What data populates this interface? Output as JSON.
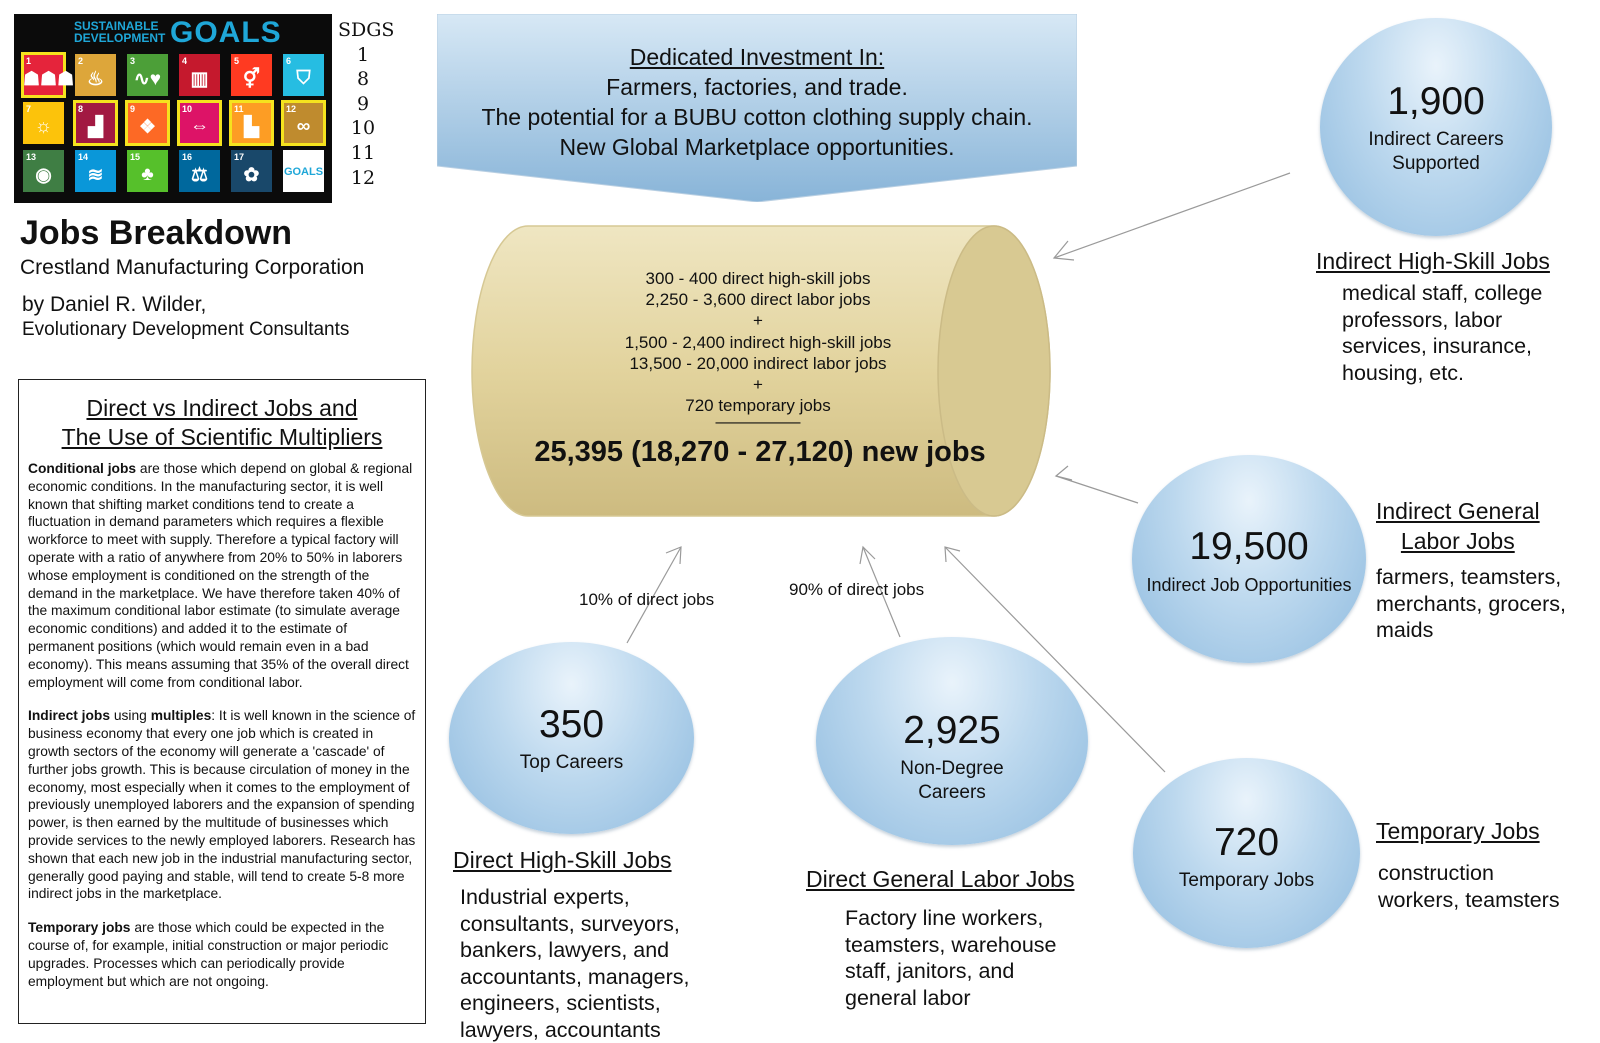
{
  "sdg_logo": {
    "title_line1": "SUSTAINABLE",
    "title_line2": "DEVELOPMENT",
    "title_goals": "GOALS",
    "tiles": [
      {
        "num": "1",
        "color": "#e5243b",
        "icon": "people-icon",
        "glyph": "☗☗☗",
        "highlight": true
      },
      {
        "num": "2",
        "color": "#dda63a",
        "icon": "bowl-icon",
        "glyph": "♨",
        "highlight": false
      },
      {
        "num": "3",
        "color": "#4c9f38",
        "icon": "heartbeat-icon",
        "glyph": "∿♥",
        "highlight": false
      },
      {
        "num": "4",
        "color": "#c5192d",
        "icon": "book-icon",
        "glyph": "▥",
        "highlight": false
      },
      {
        "num": "5",
        "color": "#ff3a21",
        "icon": "gender-icon",
        "glyph": "⚥",
        "highlight": false
      },
      {
        "num": "6",
        "color": "#26bde2",
        "icon": "water-icon",
        "glyph": "⛉",
        "highlight": false
      },
      {
        "num": "7",
        "color": "#fcc30b",
        "icon": "sun-icon",
        "glyph": "☼",
        "highlight": false
      },
      {
        "num": "8",
        "color": "#a21942",
        "icon": "growth-chart-icon",
        "glyph": "▟",
        "highlight": true
      },
      {
        "num": "9",
        "color": "#fd6925",
        "icon": "cubes-icon",
        "glyph": "❖",
        "highlight": true
      },
      {
        "num": "10",
        "color": "#dd1367",
        "icon": "equality-icon",
        "glyph": "⇔",
        "highlight": true
      },
      {
        "num": "11",
        "color": "#fd9d24",
        "icon": "city-icon",
        "glyph": "▙",
        "highlight": true
      },
      {
        "num": "12",
        "color": "#bf8b2e",
        "icon": "infinity-icon",
        "glyph": "∞",
        "highlight": true
      },
      {
        "num": "13",
        "color": "#3f7e44",
        "icon": "eye-icon",
        "glyph": "◉",
        "highlight": false
      },
      {
        "num": "14",
        "color": "#0a97d9",
        "icon": "fish-icon",
        "glyph": "≋",
        "highlight": false
      },
      {
        "num": "15",
        "color": "#56c02b",
        "icon": "tree-icon",
        "glyph": "♣",
        "highlight": false
      },
      {
        "num": "16",
        "color": "#00689d",
        "icon": "dove-icon",
        "glyph": "⚖",
        "highlight": false
      },
      {
        "num": "17",
        "color": "#19486a",
        "icon": "partnership-icon",
        "glyph": "✿",
        "highlight": false
      },
      {
        "num": "",
        "color": "#ffffff",
        "icon": "sdg-wheel-icon",
        "glyph": "GOALS",
        "highlight": false
      }
    ]
  },
  "sdg_list": {
    "heading": "SDGS",
    "numbers": [
      "1",
      "8",
      "9",
      "10",
      "11",
      "12"
    ]
  },
  "header": {
    "title": "Jobs Breakdown",
    "company": "Crestland Manufacturing Corporation",
    "author": "by Daniel R. Wilder,",
    "consultancy": "Evolutionary Development Consultants"
  },
  "info_box": {
    "heading_line1": "Direct vs Indirect Jobs and",
    "heading_line2": "The Use of Scientific Multipliers",
    "p1_bold": "Conditional jobs",
    "p1_text": " are those which depend on global  & regional economic conditions. In the manufacturing sector, it is well known that shifting market conditions tend to create a fluctuation in demand parameters which requires a flexible workforce to meet with supply. Therefore a typical factory will operate with a ratio of anywhere from 20% to 50% in laborers whose employment is conditioned on the strength of the demand in the marketplace. We have therefore taken 40% of the maximum conditional labor estimate (to simulate average economic conditions) and added it to the estimate of permanent positions (which would remain even in a bad economy). This means assuming that 35% of the overall direct employment will come from conditional labor.",
    "p2_bold1": "Indirect jobs",
    "p2_mid": " using ",
    "p2_bold2": "multiples",
    "p2_text": ": It is well known in the science of business economy that every one job which is created in growth sectors of the economy will generate a 'cascade' of further jobs growth. This is because circulation of money in the economy, most especially when it comes to the employment of previously unemployed laborers and the expansion of spending power, is then earned by the multitude of businesses which provide services to the newly employed laborers. Research has shown that each new job in the industrial manufacturing sector, generally good paying and stable, will tend to create 5-8 more indirect jobs in the marketplace.",
    "p3_bold": "Temporary jobs",
    "p3_text": " are those which could be expected in the course of, for example, initial construction or major periodic upgrades. Processes which can periodically provide employment but which are not ongoing."
  },
  "banner": {
    "heading": "Dedicated Investment In:",
    "line1": "Farmers, factories, and trade.",
    "line2": "The potential for a BUBU cotton clothing supply chain.",
    "line3": "New Global Marketplace opportunities."
  },
  "cylinder": {
    "line1": "300 - 400 direct high-skill jobs",
    "line2": "2,250 - 3,600 direct labor jobs",
    "plus1": "+",
    "line3": "1,500 - 2,400 indirect high-skill jobs",
    "line4": "13,500 - 20,000 indirect labor jobs",
    "plus2": "+",
    "line5": "720 temporary jobs",
    "rule": "—————",
    "total": "25,395 (18,270 - 27,120) new jobs"
  },
  "arrows": {
    "label_10": "10% of direct jobs",
    "label_90": "90% of direct jobs"
  },
  "bubbles": {
    "indirect_careers": {
      "value": "1,900",
      "caption_line1": "Indirect Careers",
      "caption_line2": "Supported"
    },
    "indirect_opps": {
      "value": "19,500",
      "caption": "Indirect Job Opportunities"
    },
    "top_careers": {
      "value": "350",
      "caption": "Top Careers"
    },
    "non_degree": {
      "value": "2,925",
      "caption_line1": "Non-Degree",
      "caption_line2": "Careers"
    },
    "temporary": {
      "value": "720",
      "caption": "Temporary Jobs"
    }
  },
  "categories": {
    "indirect_high_skill": {
      "title": "Indirect High-Skill Jobs",
      "lines": [
        "medical staff, college",
        "professors, labor",
        "services, insurance,",
        "housing, etc."
      ]
    },
    "indirect_general": {
      "title_line1": "Indirect General",
      "title_line2": "Labor Jobs",
      "lines": [
        "farmers, teamsters,",
        "merchants, grocers,",
        "maids"
      ]
    },
    "direct_high_skill": {
      "title": "Direct High-Skill Jobs",
      "lines": [
        "Industrial experts,",
        "consultants, surveyors,",
        "bankers, lawyers, and",
        "accountants, managers,",
        "engineers, scientists,",
        "lawyers, accountants"
      ]
    },
    "direct_general": {
      "title": "Direct General Labor Jobs",
      "lines": [
        "Factory line workers,",
        "teamsters, warehouse",
        "staff, janitors, and",
        "general labor"
      ]
    },
    "temporary": {
      "title": "Temporary Jobs",
      "lines": [
        "construction",
        "workers, teamsters"
      ]
    }
  }
}
